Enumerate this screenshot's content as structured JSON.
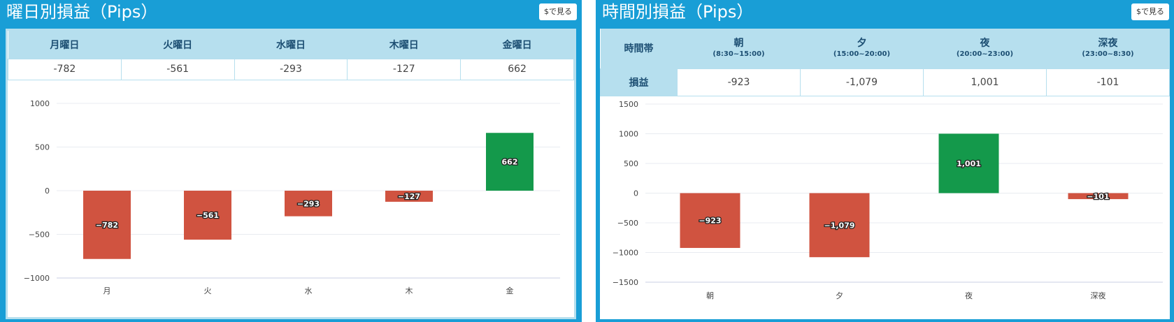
{
  "colors": {
    "header_bg": "#199ed6",
    "table_header_bg": "#b6dfee",
    "negative": "#d05340",
    "positive": "#14994b"
  },
  "weekday": {
    "title": "曜日別損益（Pips）",
    "usd_button": "$で見る",
    "headers": [
      "月曜日",
      "火曜日",
      "水曜日",
      "木曜日",
      "金曜日"
    ],
    "values": [
      "-782",
      "-561",
      "-293",
      "-127",
      "662"
    ]
  },
  "timezone": {
    "title": "時間別損益（Pips）",
    "usd_button": "$で見る",
    "row_header": "時間帯",
    "value_row_label": "損益",
    "headers": [
      {
        "name": "朝",
        "range": "(8:30~15:00)"
      },
      {
        "name": "夕",
        "range": "(15:00~20:00)"
      },
      {
        "name": "夜",
        "range": "(20:00~23:00)"
      },
      {
        "name": "深夜",
        "range": "(23:00~8:30)"
      }
    ],
    "values": [
      "-923",
      "-1,079",
      "1,001",
      "-101"
    ]
  },
  "chart_data": [
    {
      "type": "bar",
      "categories": [
        "月",
        "火",
        "水",
        "木",
        "金"
      ],
      "values": [
        -782,
        -561,
        -293,
        -127,
        662
      ],
      "bar_labels": [
        "−782",
        "−561",
        "−293",
        "−127",
        "662"
      ],
      "yticks": [
        1000,
        500,
        0,
        -500,
        -1000
      ],
      "ytick_labels": [
        "1000",
        "500",
        "0",
        "−500",
        "−1000"
      ],
      "ylim": [
        -1000,
        1000
      ],
      "grid": true
    },
    {
      "type": "bar",
      "categories": [
        "朝",
        "夕",
        "夜",
        "深夜"
      ],
      "values": [
        -923,
        -1079,
        1001,
        -101
      ],
      "bar_labels": [
        "−923",
        "−1,079",
        "1,001",
        "−101"
      ],
      "yticks": [
        1500,
        1000,
        500,
        0,
        -500,
        -1000,
        -1500
      ],
      "ytick_labels": [
        "1500",
        "1000",
        "500",
        "0",
        "−500",
        "−1000",
        "−1500"
      ],
      "ylim": [
        -1500,
        1500
      ],
      "grid": true
    }
  ]
}
